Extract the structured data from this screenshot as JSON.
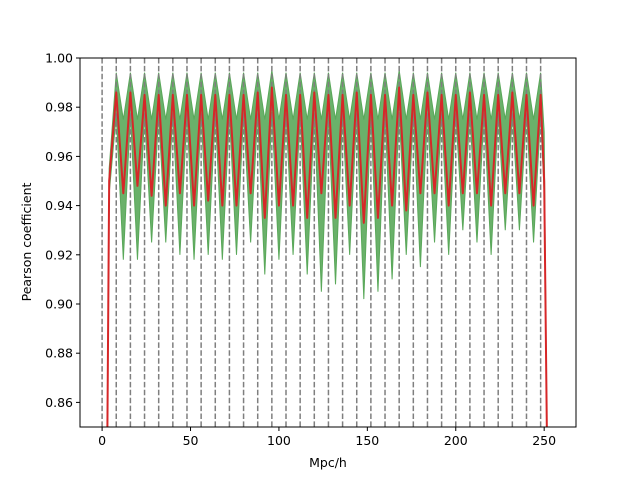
{
  "chart_data": {
    "type": "line",
    "xlabel": "Mpc/h",
    "ylabel": "Pearson coefficient",
    "xlim": [
      -12.5,
      268
    ],
    "ylim": [
      0.85,
      1.0
    ],
    "xticks": [
      0,
      50,
      100,
      150,
      200,
      250
    ],
    "yticks": [
      0.86,
      0.88,
      {
        "value": 0.9,
        "label": "0.90"
      },
      0.92,
      0.94,
      0.96,
      0.98,
      {
        "value": 1,
        "label": "1.00"
      }
    ],
    "vlines": [
      0,
      8,
      16,
      24,
      32,
      40,
      48,
      56,
      64,
      72,
      80,
      88,
      96,
      104,
      112,
      120,
      128,
      136,
      144,
      152,
      160,
      168,
      176,
      184,
      192,
      200,
      208,
      216,
      224,
      232,
      240,
      248
    ],
    "vline_color": "#7f7f7f",
    "x": [
      3,
      4,
      8,
      12,
      16,
      20,
      24,
      28,
      32,
      36,
      40,
      44,
      48,
      52,
      56,
      60,
      64,
      68,
      72,
      76,
      80,
      84,
      88,
      92,
      96,
      100,
      104,
      108,
      112,
      116,
      120,
      124,
      128,
      132,
      136,
      140,
      144,
      148,
      152,
      156,
      160,
      164,
      168,
      172,
      176,
      180,
      184,
      188,
      192,
      196,
      200,
      204,
      208,
      212,
      216,
      220,
      224,
      228,
      232,
      236,
      240,
      244,
      248,
      250,
      251.5
    ],
    "series": [
      {
        "color": "#d62728",
        "values": [
          0.85,
          0.95,
          0.986,
          0.945,
          0.986,
          0.948,
          0.985,
          0.944,
          0.985,
          0.94,
          0.985,
          0.945,
          0.985,
          0.94,
          0.985,
          0.942,
          0.985,
          0.94,
          0.985,
          0.94,
          0.985,
          0.945,
          0.986,
          0.935,
          0.988,
          0.94,
          0.985,
          0.94,
          0.985,
          0.935,
          0.986,
          0.945,
          0.985,
          0.935,
          0.985,
          0.94,
          0.986,
          0.933,
          0.985,
          0.935,
          0.985,
          0.94,
          0.988,
          0.938,
          0.985,
          0.945,
          0.986,
          0.945,
          0.985,
          0.94,
          0.985,
          0.945,
          0.986,
          0.945,
          0.985,
          0.94,
          0.985,
          0.945,
          0.986,
          0.945,
          0.985,
          0.94,
          0.985,
          0.95,
          0.85
        ]
      },
      {
        "color": "#5aa85a",
        "band": "upper",
        "values": [
          0.85,
          0.955,
          0.994,
          0.975,
          0.994,
          0.975,
          0.994,
          0.975,
          0.994,
          0.975,
          0.994,
          0.975,
          0.994,
          0.975,
          0.994,
          0.975,
          0.994,
          0.975,
          0.994,
          0.975,
          0.994,
          0.975,
          0.994,
          0.975,
          0.995,
          0.975,
          0.994,
          0.975,
          0.994,
          0.975,
          0.994,
          0.975,
          0.994,
          0.975,
          0.994,
          0.975,
          0.994,
          0.975,
          0.994,
          0.975,
          0.994,
          0.975,
          0.995,
          0.975,
          0.994,
          0.975,
          0.994,
          0.975,
          0.994,
          0.975,
          0.994,
          0.975,
          0.994,
          0.975,
          0.994,
          0.975,
          0.994,
          0.975,
          0.994,
          0.975,
          0.994,
          0.975,
          0.994,
          0.97,
          0.85
        ]
      },
      {
        "color": "#5aa85a",
        "band": "lower",
        "values": [
          0.85,
          0.945,
          0.977,
          0.918,
          0.977,
          0.918,
          0.977,
          0.925,
          0.977,
          0.925,
          0.977,
          0.92,
          0.977,
          0.918,
          0.977,
          0.92,
          0.977,
          0.918,
          0.977,
          0.92,
          0.977,
          0.925,
          0.977,
          0.912,
          0.978,
          0.918,
          0.977,
          0.92,
          0.977,
          0.912,
          0.977,
          0.905,
          0.977,
          0.908,
          0.977,
          0.92,
          0.977,
          0.902,
          0.977,
          0.905,
          0.977,
          0.91,
          0.978,
          0.92,
          0.977,
          0.915,
          0.977,
          0.925,
          0.977,
          0.92,
          0.977,
          0.93,
          0.977,
          0.925,
          0.977,
          0.92,
          0.977,
          0.93,
          0.977,
          0.93,
          0.977,
          0.925,
          0.977,
          0.945,
          0.85
        ]
      }
    ]
  }
}
